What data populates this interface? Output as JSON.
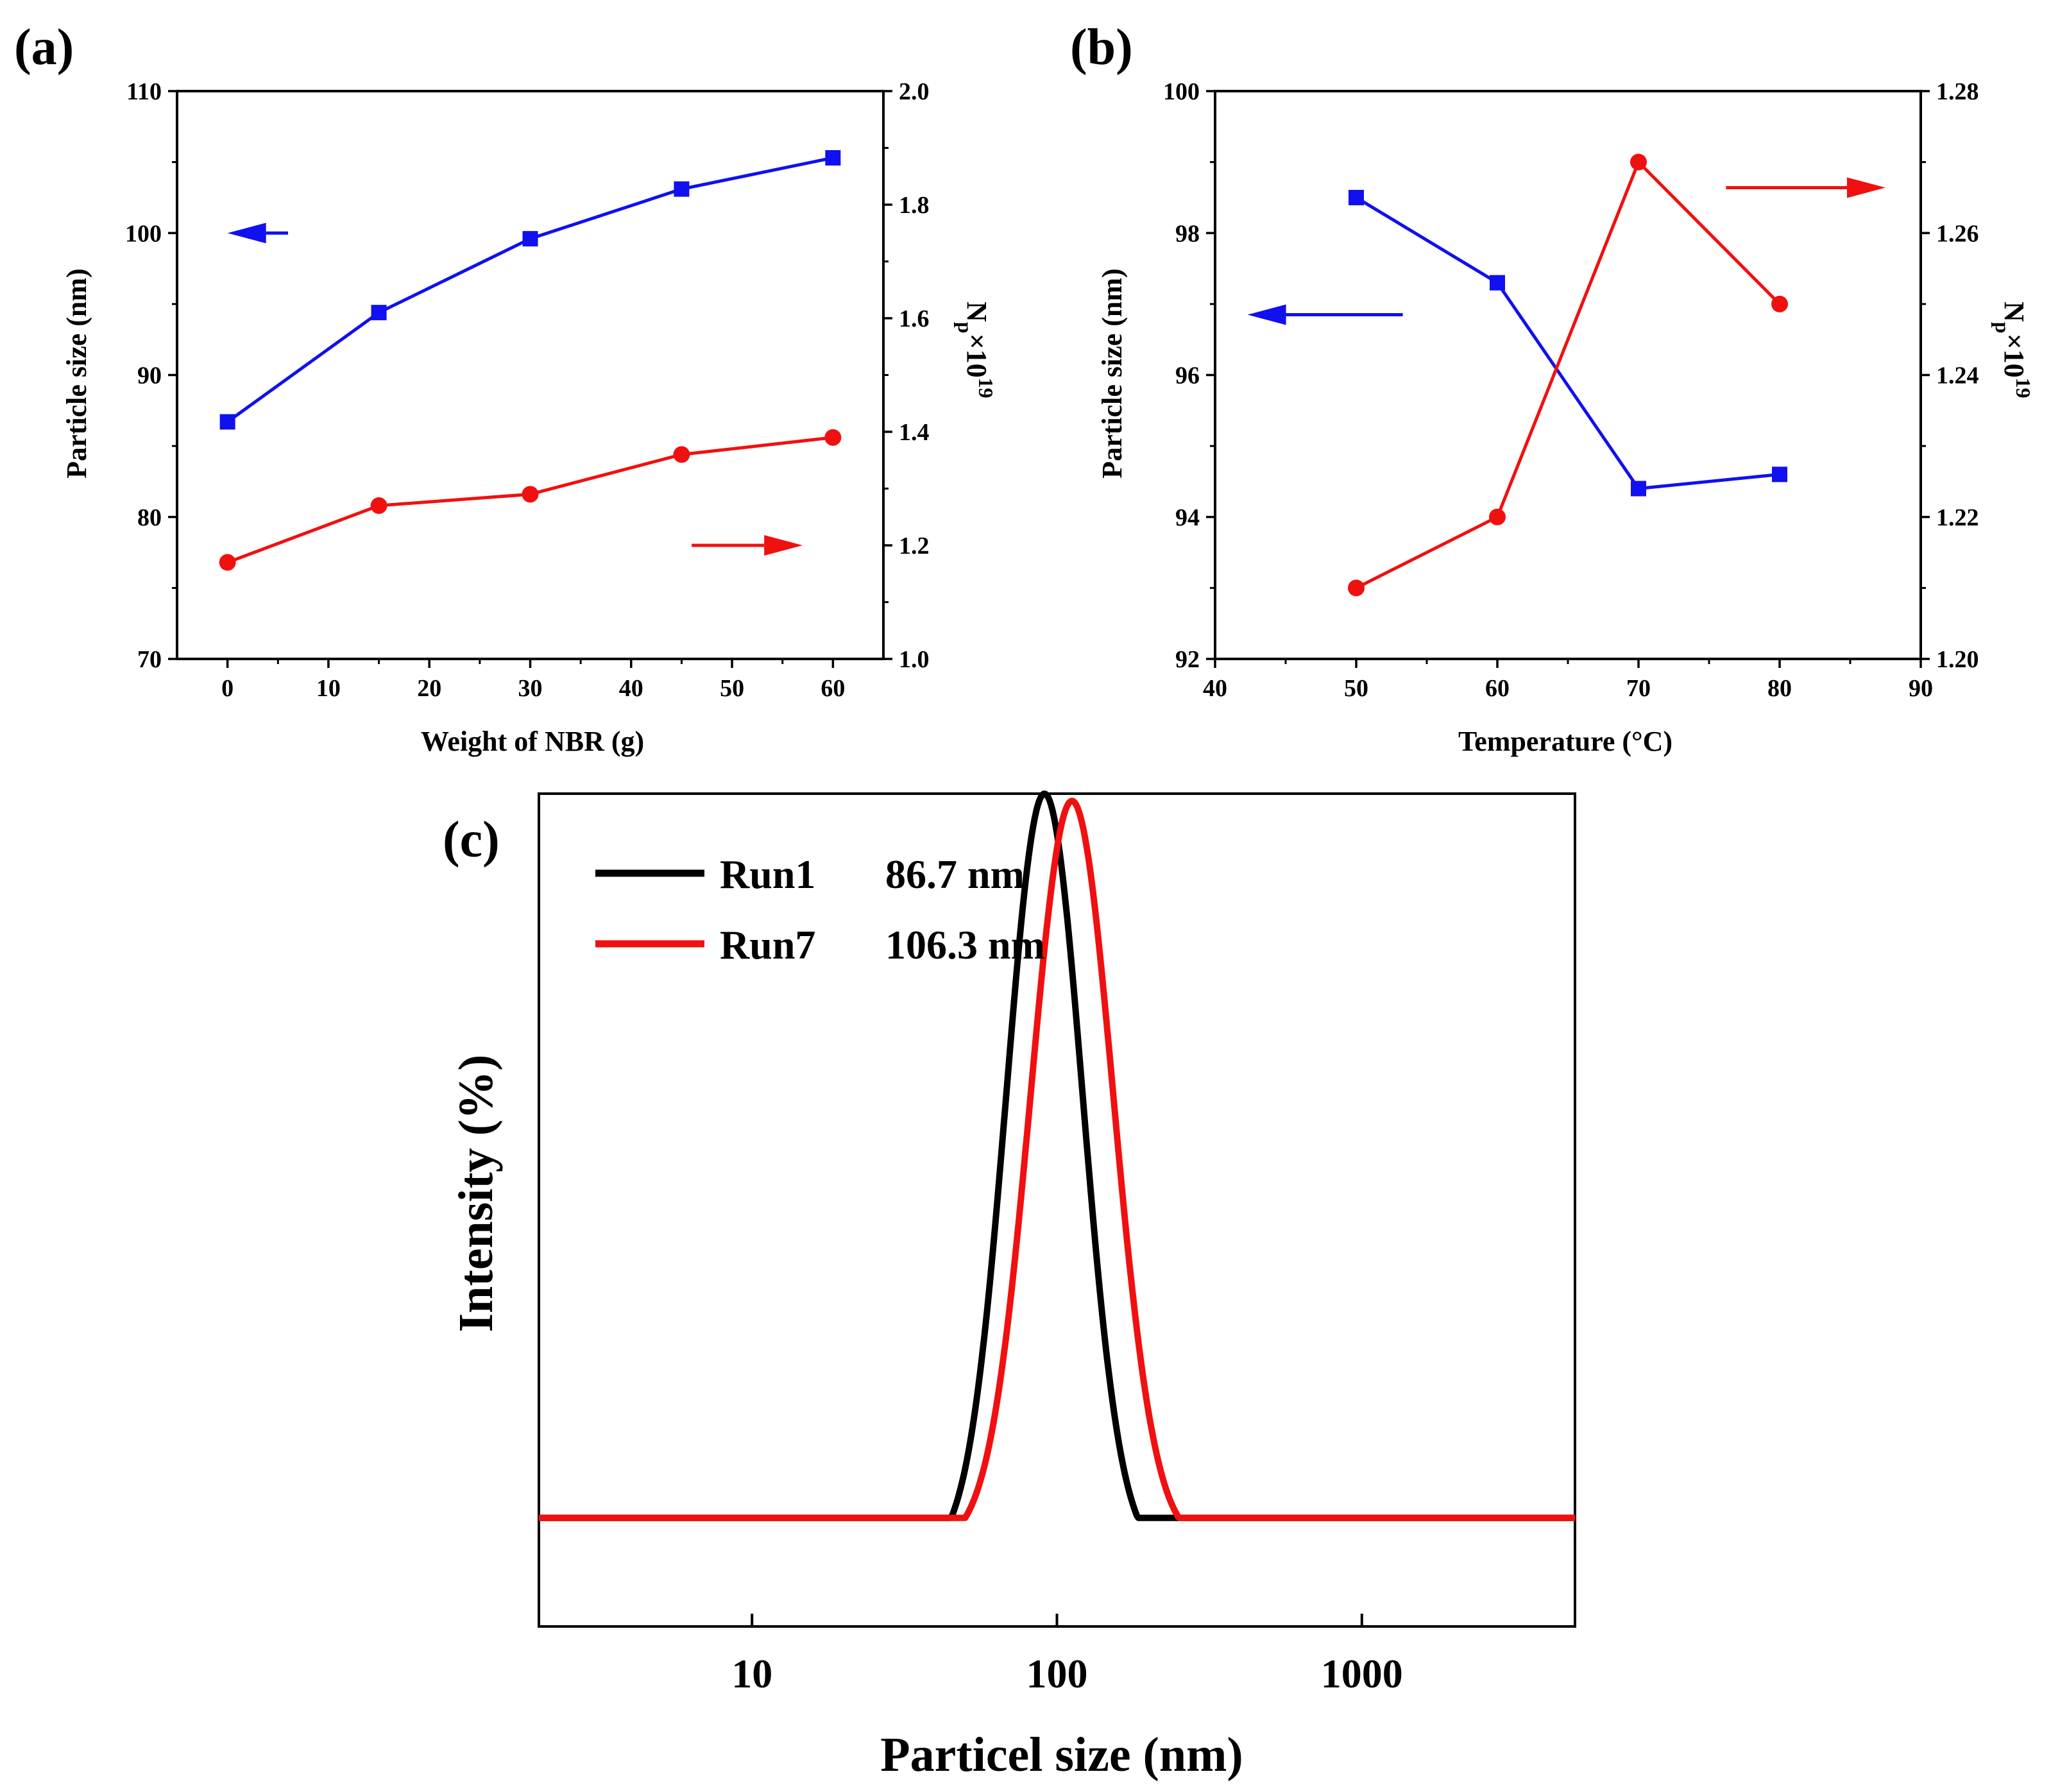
{
  "chart_data": [
    {
      "panel": "(a)",
      "type": "line",
      "xlabel": "Weight of NBR (g)",
      "ylabel": "Particle size (nm)",
      "y2label": "N_p×10^19",
      "y2label_main": "N",
      "y2label_sub": "p",
      "y2label_mult": "×10",
      "y2label_sup": "19",
      "xlim": [
        -5,
        65
      ],
      "ylim": [
        70,
        110
      ],
      "y2lim": [
        1.0,
        2.0
      ],
      "xticks": [
        "0",
        "10",
        "20",
        "30",
        "40",
        "50",
        "60"
      ],
      "xtick_values": [
        0,
        10,
        20,
        30,
        40,
        50,
        60
      ],
      "yticks": [
        "70",
        "80",
        "90",
        "100",
        "110"
      ],
      "ytick_values": [
        70,
        80,
        90,
        100,
        110
      ],
      "y2ticks": [
        "1.0",
        "1.2",
        "1.4",
        "1.6",
        "1.8",
        "2.0"
      ],
      "y2tick_values": [
        1.0,
        1.2,
        1.4,
        1.6,
        1.8,
        2.0
      ],
      "series": [
        {
          "name": "Particle size",
          "axis": "left",
          "color": "#1010f0",
          "marker": "square",
          "x": [
            0,
            15,
            30,
            45,
            60
          ],
          "values": [
            86.7,
            94.4,
            99.6,
            103.1,
            105.3
          ]
        },
        {
          "name": "N_p",
          "axis": "right",
          "color": "#f01010",
          "marker": "circle",
          "x": [
            0,
            15,
            30,
            45,
            60
          ],
          "values": [
            1.17,
            1.27,
            1.29,
            1.36,
            1.39
          ]
        }
      ],
      "arrows": [
        {
          "color": "#1010f0",
          "direction": "left",
          "x_from": 6,
          "x_to": 0,
          "y": 100,
          "axis": "left"
        },
        {
          "color": "#f01010",
          "direction": "right",
          "x_from": 46,
          "x_to": 57,
          "y": 1.2,
          "axis": "right"
        }
      ]
    },
    {
      "panel": "(b)",
      "type": "line",
      "xlabel": "Temperature (°C)",
      "ylabel": "Particle size (nm)",
      "y2label": "N_p×10^19",
      "y2label_main": "N",
      "y2label_sub": "p",
      "y2label_mult": "×10",
      "y2label_sup": "19",
      "xlim": [
        40,
        90
      ],
      "ylim": [
        92,
        100
      ],
      "y2lim": [
        1.2,
        1.28
      ],
      "xticks": [
        "40",
        "50",
        "60",
        "70",
        "80",
        "90"
      ],
      "xtick_values": [
        40,
        50,
        60,
        70,
        80,
        90
      ],
      "yticks": [
        "92",
        "94",
        "96",
        "98",
        "100"
      ],
      "ytick_values": [
        92,
        94,
        96,
        98,
        100
      ],
      "y2ticks": [
        "1.20",
        "1.22",
        "1.24",
        "1.26",
        "1.28"
      ],
      "y2tick_values": [
        1.2,
        1.22,
        1.24,
        1.26,
        1.28
      ],
      "series": [
        {
          "name": "Particle size",
          "axis": "left",
          "color": "#1010f0",
          "marker": "square",
          "x": [
            50,
            60,
            70,
            80
          ],
          "values": [
            98.5,
            97.3,
            94.4,
            94.6
          ]
        },
        {
          "name": "N_p",
          "axis": "right",
          "color": "#f01010",
          "marker": "circle",
          "x": [
            50,
            60,
            70,
            80
          ],
          "values": [
            1.21,
            1.22,
            1.27,
            1.25
          ]
        }
      ],
      "arrows": [
        {
          "color": "#1010f0",
          "direction": "left",
          "x_from": 53.3,
          "x_to": 42.3,
          "y": 96.85,
          "axis": "left"
        },
        {
          "color": "#f01010",
          "direction": "right",
          "x_from": 76.2,
          "x_to": 87.5,
          "y": 1.2664,
          "axis": "right"
        }
      ]
    },
    {
      "panel": "(c)",
      "type": "line",
      "xlabel": "Particel size (nm)",
      "ylabel": "Intensity (%)",
      "xscale": "log",
      "xlim": [
        2,
        5000
      ],
      "ylim": [
        -0.15,
        1.0
      ],
      "xticks": [
        "10",
        "100",
        "1000"
      ],
      "xtick_values": [
        10,
        100,
        1000
      ],
      "legend_position": "top-left",
      "series": [
        {
          "name": "Run1",
          "label_value": "86.7 nm",
          "color": "#000000",
          "peak_x": 91,
          "log_sigma": 0.125,
          "support": [
            45,
            210
          ],
          "baseline": 0,
          "peak_y": 1.0
        },
        {
          "name": "Run7",
          "label_value": "106.3 nm",
          "color": "#f01010",
          "peak_x": 112,
          "log_sigma": 0.135,
          "support": [
            50,
            320
          ],
          "baseline": 0,
          "peak_y": 0.99
        }
      ]
    }
  ]
}
